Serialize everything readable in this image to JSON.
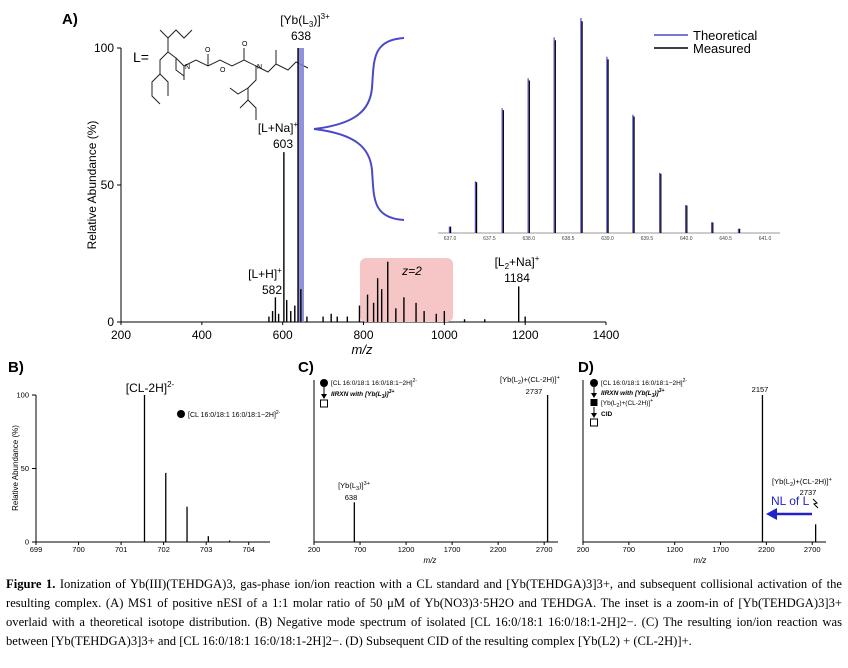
{
  "chart_data": [
    {
      "panel": "A)",
      "type": "bar",
      "xlabel": "m/z",
      "ylabel": "Relative Abundance (%)",
      "xlim": [
        200,
        1400
      ],
      "ylim": [
        0,
        100
      ],
      "xticks": [
        "200",
        "400",
        "600",
        "800",
        "1000",
        "1200",
        "1400"
      ],
      "yticks": [
        "0",
        "50",
        "100"
      ],
      "peaks": [
        {
          "x": 566,
          "y": 2
        },
        {
          "x": 575,
          "y": 4
        },
        {
          "x": 582,
          "y": 9
        },
        {
          "x": 590,
          "y": 3
        },
        {
          "x": 603,
          "y": 62
        },
        {
          "x": 610,
          "y": 8
        },
        {
          "x": 620,
          "y": 4
        },
        {
          "x": 630,
          "y": 6
        },
        {
          "x": 638,
          "y": 100
        },
        {
          "x": 645,
          "y": 12
        },
        {
          "x": 660,
          "y": 2
        },
        {
          "x": 700,
          "y": 2
        },
        {
          "x": 720,
          "y": 3
        },
        {
          "x": 735,
          "y": 2
        },
        {
          "x": 760,
          "y": 2
        },
        {
          "x": 790,
          "y": 6
        },
        {
          "x": 810,
          "y": 10
        },
        {
          "x": 825,
          "y": 7
        },
        {
          "x": 835,
          "y": 16
        },
        {
          "x": 845,
          "y": 12
        },
        {
          "x": 860,
          "y": 22
        },
        {
          "x": 880,
          "y": 5
        },
        {
          "x": 900,
          "y": 9
        },
        {
          "x": 930,
          "y": 7
        },
        {
          "x": 950,
          "y": 4
        },
        {
          "x": 980,
          "y": 3
        },
        {
          "x": 1000,
          "y": 4
        },
        {
          "x": 1050,
          "y": 1
        },
        {
          "x": 1100,
          "y": 1
        },
        {
          "x": 1184,
          "y": 13
        },
        {
          "x": 1200,
          "y": 2
        }
      ],
      "labels": {
        "complex": "[Yb(L3)]3+",
        "complex_mz": "638",
        "na_adduct": "[L+Na]+",
        "na_mz": "603",
        "proton": "[L+H]+",
        "proton_mz": "582",
        "dimer": "[L2+Na]+",
        "dimer_mz": "1184",
        "charge_region": "z=2",
        "ligand": "L="
      },
      "inset": {
        "legend": [
          "Theoretical",
          "Measured"
        ],
        "colors": {
          "theoretical": "#4a4ac8",
          "measured": "#000000"
        },
        "x_ticks": [
          "637.0",
          "637.5",
          "638.0",
          "638.5",
          "639.0",
          "639.5",
          "640.0",
          "640.5",
          "641.0"
        ],
        "peaks": [
          {
            "x": 637.0,
            "y": 3
          },
          {
            "x": 637.33,
            "y": 24
          },
          {
            "x": 637.67,
            "y": 58
          },
          {
            "x": 638.0,
            "y": 72
          },
          {
            "x": 638.33,
            "y": 91
          },
          {
            "x": 638.67,
            "y": 100
          },
          {
            "x": 639.0,
            "y": 82
          },
          {
            "x": 639.33,
            "y": 55
          },
          {
            "x": 639.67,
            "y": 28
          },
          {
            "x": 640.0,
            "y": 13
          },
          {
            "x": 640.33,
            "y": 5
          },
          {
            "x": 640.67,
            "y": 2
          }
        ]
      }
    },
    {
      "panel": "B)",
      "type": "bar",
      "xlabel": "",
      "ylabel": "Relative Abundance (%)",
      "xlim": [
        699,
        704.5
      ],
      "ylim": [
        0,
        100
      ],
      "xticks": [
        "699",
        "700",
        "701",
        "702",
        "703",
        "704"
      ],
      "yticks": [
        "0",
        "50",
        "100"
      ],
      "peaks": [
        {
          "x": 701.55,
          "y": 100
        },
        {
          "x": 702.05,
          "y": 47
        },
        {
          "x": 702.55,
          "y": 24
        },
        {
          "x": 703.05,
          "y": 4
        },
        {
          "x": 703.55,
          "y": 1
        }
      ],
      "labels": {
        "ion": "[CL-2H]2-",
        "legend": "[CL 16:0/18:1 16:0/18:1−2H]2-"
      }
    },
    {
      "panel": "C)",
      "type": "bar",
      "xlabel": "m/z",
      "xlim": [
        200,
        2850
      ],
      "ylim": [
        0,
        100
      ],
      "xticks": [
        "200",
        "700",
        "1200",
        "1700",
        "2200",
        "2700"
      ],
      "peaks": [
        {
          "x": 638,
          "y": 27
        },
        {
          "x": 2737,
          "y": 100
        }
      ],
      "labels": {
        "schema_top": "[CL 16:0/18:1 16:0/18:1−2H]2-",
        "schema_step": "IIRXN with [Yb(L3)]3+",
        "product": "[Yb(L2)+(CL-2H)]+",
        "product_mz": "2737",
        "complex": "[Yb(L3)]3+",
        "complex_mz": "638"
      }
    },
    {
      "panel": "D)",
      "type": "bar",
      "xlabel": "m/z",
      "xlim": [
        200,
        2850
      ],
      "ylim": [
        0,
        100
      ],
      "xticks": [
        "200",
        "700",
        "1200",
        "1700",
        "2200",
        "2700"
      ],
      "peaks": [
        {
          "x": 2157,
          "y": 100
        },
        {
          "x": 2737,
          "y": 12
        }
      ],
      "labels": {
        "schema_top": "[CL 16:0/18:1 16:0/18:1−2H]2-",
        "schema_step": "IIRXN with [Yb(L3)]3+",
        "schema_mid": "[Yb(L2)+(CL-2H)]+",
        "schema_cid": "CID",
        "fragment_mz": "2157",
        "precursor": "[Yb(L2)+(CL-2H)]+",
        "precursor_mz": "2737",
        "neutral_loss": "NL of L"
      }
    }
  ],
  "caption": {
    "lead": "Figure 1.",
    "text": "Ionization of Yb(III)(TEHDGA)3, gas-phase ion/ion reaction with a CL standard and [Yb(TEHDGA)3]3+, and subsequent collisional activation of the resulting complex. (A) MS1 of positive nESI of a 1:1 molar ratio of 50 μM of Yb(NO3)3·5H2O and TEHDGA. The inset is a zoom-in of [Yb(TEHDGA)3]3+ overlaid with a theoretical isotope distribution. (B) Negative mode spectrum of isolated [CL 16:0/18:1 16:0/18:1-2H]2−. (C) The resulting ion/ion reaction was between [Yb(TEHDGA)3]3+ and [CL 16:0/18:1 16:0/18:1-2H]2−. (D) Subsequent CID of the resulting complex [Yb(L2) + (CL-2H)]+."
  }
}
